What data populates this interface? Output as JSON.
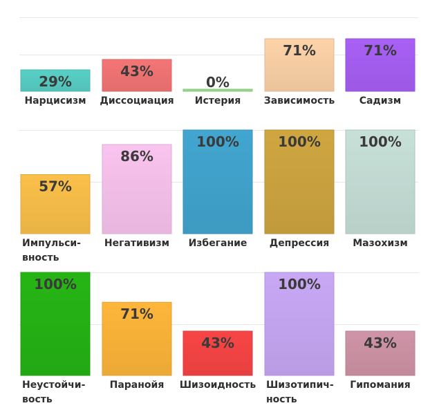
{
  "chart_data": [
    {
      "type": "bar",
      "ylim": [
        0,
        100
      ],
      "grid": true,
      "categories": [
        "Нарцисизм",
        "Диссоциация",
        "Истерия",
        "Зависимость",
        "Садизм"
      ],
      "values": [
        29,
        43,
        0,
        71,
        71
      ],
      "value_labels": [
        "29%",
        "43%",
        "0%",
        "71%",
        "71%"
      ],
      "colors": [
        "#58d0c6",
        "#f47575",
        "#9be08f",
        "#fdd3a8",
        "#a860f5"
      ]
    },
    {
      "type": "bar",
      "ylim": [
        0,
        100
      ],
      "grid": true,
      "categories": [
        "Импульси-|вность",
        "Негативизм",
        "Избегание",
        "Депрессия",
        "Мазохизм"
      ],
      "values": [
        57,
        86,
        100,
        100,
        100
      ],
      "value_labels": [
        "57%",
        "86%",
        "100%",
        "100%",
        "100%"
      ],
      "colors": [
        "#fbc04a",
        "#f9c4ef",
        "#42a6d0",
        "#cfa640",
        "#c7e0d8"
      ]
    },
    {
      "type": "bar",
      "ylim": [
        0,
        100
      ],
      "grid": true,
      "categories": [
        "Неустойчи-|вость",
        "Паранойя",
        "Шизоидность",
        "Шизотипич-|ность",
        "Гипомания"
      ],
      "values": [
        100,
        71,
        43,
        100,
        43
      ],
      "value_labels": [
        "100%",
        "71%",
        "43%",
        "100%",
        "43%"
      ],
      "colors": [
        "#26b515",
        "#feb63a",
        "#f84545",
        "#c8a8f5",
        "#cf94a7"
      ]
    }
  ]
}
